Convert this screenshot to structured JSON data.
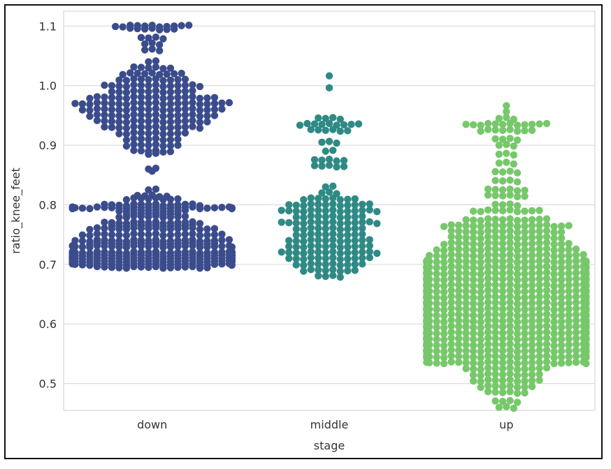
{
  "chart_data": {
    "type": "swarm",
    "xlabel": "stage",
    "ylabel": "ratio_knee_feet",
    "ylim": [
      0.455,
      1.125
    ],
    "yticks": [
      0.5,
      0.6,
      0.7,
      0.8,
      0.9,
      1.0,
      1.1
    ],
    "ytick_labels": [
      "0.5",
      "0.6",
      "0.7",
      "0.8",
      "0.9",
      "1.0",
      "1.1"
    ],
    "grid": true,
    "categories": [
      "down",
      "middle",
      "up"
    ],
    "colors": {
      "down": "#3b4c8c",
      "middle": "#2f8a85",
      "up": "#76c86a"
    },
    "series": [
      {
        "category": "down",
        "bins": [
          [
            1.1,
            11
          ],
          [
            1.095,
            7
          ],
          [
            1.08,
            4
          ],
          [
            1.07,
            3
          ],
          [
            1.06,
            3
          ],
          [
            1.04,
            2
          ],
          [
            1.03,
            6
          ],
          [
            1.02,
            9
          ],
          [
            1.01,
            10
          ],
          [
            1.0,
            14
          ],
          [
            0.99,
            12
          ],
          [
            0.98,
            18
          ],
          [
            0.97,
            22
          ],
          [
            0.96,
            20
          ],
          [
            0.95,
            18
          ],
          [
            0.94,
            16
          ],
          [
            0.93,
            14
          ],
          [
            0.92,
            10
          ],
          [
            0.91,
            8
          ],
          [
            0.9,
            8
          ],
          [
            0.89,
            6
          ],
          [
            0.885,
            2
          ],
          [
            0.86,
            2
          ],
          [
            0.855,
            1
          ],
          [
            0.825,
            2
          ],
          [
            0.815,
            5
          ],
          [
            0.81,
            8
          ],
          [
            0.8,
            14
          ],
          [
            0.795,
            28
          ],
          [
            0.79,
            10
          ],
          [
            0.785,
            8
          ],
          [
            0.78,
            10
          ],
          [
            0.77,
            14
          ],
          [
            0.765,
            12
          ],
          [
            0.76,
            18
          ],
          [
            0.75,
            20
          ],
          [
            0.74,
            22
          ],
          [
            0.735,
            18
          ],
          [
            0.73,
            26
          ],
          [
            0.72,
            32
          ],
          [
            0.715,
            36
          ],
          [
            0.71,
            38
          ],
          [
            0.705,
            30
          ],
          [
            0.7,
            26
          ],
          [
            0.695,
            16
          ]
        ]
      },
      {
        "category": "middle",
        "bins": [
          [
            1.015,
            1
          ],
          [
            0.995,
            1
          ],
          [
            0.945,
            4
          ],
          [
            0.935,
            9
          ],
          [
            0.925,
            6
          ],
          [
            0.905,
            3
          ],
          [
            0.89,
            2
          ],
          [
            0.875,
            5
          ],
          [
            0.865,
            5
          ],
          [
            0.83,
            2
          ],
          [
            0.82,
            3
          ],
          [
            0.81,
            8
          ],
          [
            0.8,
            12
          ],
          [
            0.79,
            14
          ],
          [
            0.78,
            10
          ],
          [
            0.77,
            14
          ],
          [
            0.76,
            10
          ],
          [
            0.75,
            10
          ],
          [
            0.74,
            12
          ],
          [
            0.73,
            12
          ],
          [
            0.72,
            14
          ],
          [
            0.71,
            12
          ],
          [
            0.7,
            10
          ],
          [
            0.69,
            8
          ],
          [
            0.68,
            4
          ]
        ]
      },
      {
        "category": "up",
        "bins": [
          [
            0.965,
            1
          ],
          [
            0.955,
            1
          ],
          [
            0.945,
            3
          ],
          [
            0.935,
            12
          ],
          [
            0.925,
            8
          ],
          [
            0.91,
            4
          ],
          [
            0.9,
            3
          ],
          [
            0.885,
            3
          ],
          [
            0.87,
            3
          ],
          [
            0.855,
            4
          ],
          [
            0.84,
            4
          ],
          [
            0.825,
            6
          ],
          [
            0.815,
            6
          ],
          [
            0.8,
            4
          ],
          [
            0.79,
            10
          ],
          [
            0.775,
            12
          ],
          [
            0.765,
            18
          ],
          [
            0.755,
            16
          ],
          [
            0.745,
            16
          ],
          [
            0.735,
            18
          ],
          [
            0.725,
            20
          ],
          [
            0.715,
            22
          ],
          [
            0.705,
            30
          ],
          [
            0.695,
            32
          ],
          [
            0.685,
            36
          ],
          [
            0.675,
            38
          ],
          [
            0.665,
            40
          ],
          [
            0.655,
            40
          ],
          [
            0.645,
            40
          ],
          [
            0.635,
            40
          ],
          [
            0.625,
            40
          ],
          [
            0.615,
            40
          ],
          [
            0.605,
            40
          ],
          [
            0.595,
            40
          ],
          [
            0.585,
            40
          ],
          [
            0.575,
            40
          ],
          [
            0.565,
            40
          ],
          [
            0.555,
            40
          ],
          [
            0.545,
            38
          ],
          [
            0.535,
            24
          ],
          [
            0.525,
            12
          ],
          [
            0.515,
            10
          ],
          [
            0.505,
            10
          ],
          [
            0.495,
            8
          ],
          [
            0.485,
            6
          ],
          [
            0.47,
            4
          ],
          [
            0.46,
            3
          ]
        ]
      }
    ]
  }
}
